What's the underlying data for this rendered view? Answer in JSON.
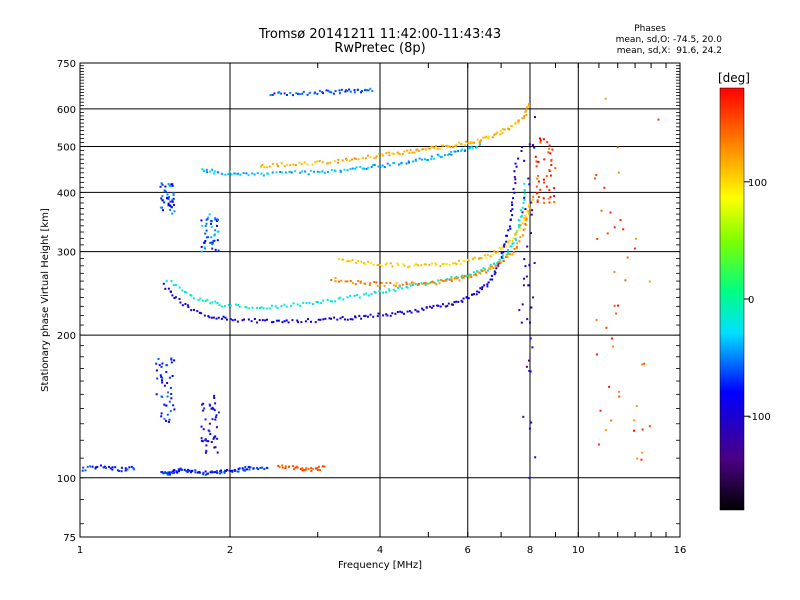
{
  "chart_data": {
    "type": "scatter",
    "title": "Tromsø 20141211 11:42:00-11:43:43",
    "subtitle": "RwPretec (8p)",
    "xlabel": "Frequency [MHz]",
    "ylabel": "Stationary phase Virtual Height [km]",
    "x_scale": "log",
    "y_scale": "log",
    "xlim": [
      1,
      16
    ],
    "ylim": [
      75,
      750
    ],
    "x_ticks": [
      1,
      2,
      4,
      6,
      8,
      10,
      16
    ],
    "y_ticks": [
      75,
      100,
      200,
      300,
      400,
      500,
      600,
      750
    ],
    "x_tick_labels": [
      "1",
      "2",
      "4",
      "6",
      "8",
      "10",
      "16"
    ],
    "y_tick_labels": [
      "75",
      "100",
      "200",
      "300",
      "400",
      "500",
      "600",
      "750"
    ],
    "grid": true,
    "phases_box": {
      "heading": "Phases",
      "line_o": "mean, sd,O: -74.5, 20.0",
      "line_x": "mean, sd,X:  91.6, 24.2"
    },
    "colorbar": {
      "label": "[deg]",
      "range": [
        -180,
        180
      ],
      "ticks": [
        100,
        0,
        -100
      ],
      "tick_labels": [
        "100",
        "0",
        "-100"
      ],
      "colormap": "rainbow"
    },
    "traces": [
      {
        "f": [
          1.48,
          1.6,
          1.8,
          2.0,
          2.3,
          2.6,
          3.0,
          3.4,
          3.8,
          4.3,
          4.8,
          5.3,
          5.8,
          6.3,
          6.7,
          7.0,
          7.25,
          7.4,
          7.55
        ],
        "h": [
          255,
          232,
          220,
          216,
          214,
          214,
          215,
          217,
          219,
          222,
          226,
          230,
          236,
          246,
          262,
          290,
          330,
          390,
          480
        ],
        "phase": -95
      },
      {
        "f": [
          1.5,
          1.7,
          1.9,
          2.2,
          2.5,
          2.9,
          3.3,
          3.8,
          4.3,
          4.8,
          5.4,
          6.0,
          6.6,
          7.1,
          7.5,
          7.7,
          7.85
        ],
        "h": [
          260,
          240,
          232,
          228,
          230,
          233,
          238,
          244,
          250,
          256,
          262,
          268,
          276,
          292,
          320,
          360,
          420
        ],
        "phase": -20
      },
      {
        "f": [
          3.2,
          3.6,
          4.0,
          4.5,
          5.0,
          5.5,
          6.0,
          6.5,
          7.0,
          7.5,
          7.9,
          8.1
        ],
        "h": [
          262,
          258,
          256,
          256,
          257,
          260,
          265,
          272,
          284,
          305,
          350,
          400
        ],
        "phase": 130
      },
      {
        "f": [
          3.3,
          3.7,
          4.2,
          4.8,
          5.4,
          6.0,
          6.6,
          7.2,
          7.7,
          8.0
        ],
        "h": [
          290,
          284,
          281,
          280,
          282,
          286,
          294,
          310,
          340,
          380
        ],
        "phase": 105
      },
      {
        "f": [
          1.75,
          1.9,
          2.1,
          2.4,
          2.8,
          3.2,
          3.6,
          4.0,
          4.5,
          5.0,
          5.5,
          6.0,
          6.4
        ],
        "h": [
          448,
          440,
          438,
          438,
          440,
          442,
          448,
          455,
          463,
          472,
          482,
          494,
          506
        ],
        "phase": -40
      },
      {
        "f": [
          2.3,
          2.6,
          3.0,
          3.4,
          3.8,
          4.2,
          4.6,
          5.0,
          5.4,
          5.8,
          6.3,
          6.8,
          7.3,
          7.8,
          8.0
        ],
        "h": [
          455,
          458,
          462,
          468,
          475,
          482,
          488,
          495,
          500,
          506,
          514,
          528,
          548,
          580,
          620
        ],
        "phase": 115
      },
      {
        "f": [
          2.4,
          2.7,
          3.0,
          3.3,
          3.6,
          3.9
        ],
        "h": [
          645,
          647,
          650,
          652,
          655,
          660
        ],
        "phase": -60
      },
      {
        "f": [
          1.45,
          1.5,
          1.55,
          1.6,
          1.7,
          1.8,
          1.9,
          2.0,
          2.1,
          2.2,
          2.4
        ],
        "h": [
          103,
          102,
          103,
          104,
          103,
          102,
          103,
          103,
          104,
          105,
          104
        ],
        "phase": -75
      },
      {
        "f": [
          1.0,
          1.1,
          1.2,
          1.3
        ],
        "h": [
          104,
          106,
          104,
          105
        ],
        "phase": -70
      },
      {
        "f": [
          2.5,
          2.7,
          2.9,
          3.1
        ],
        "h": [
          106,
          105,
          104,
          105
        ],
        "phase": 150
      }
    ],
    "clusters": [
      {
        "f": [
          1.42,
          1.55
        ],
        "h": [
          130,
          180
        ],
        "phase": -80
      },
      {
        "f": [
          1.75,
          1.9
        ],
        "h": [
          112,
          150
        ],
        "phase": -95
      },
      {
        "f": [
          1.45,
          1.55
        ],
        "h": [
          360,
          420
        ],
        "phase": -70
      },
      {
        "f": [
          1.75,
          1.9
        ],
        "h": [
          300,
          360
        ],
        "phase": -60
      },
      {
        "f": [
          7.6,
          8.2
        ],
        "h": [
          100,
          600
        ],
        "phase": -110
      },
      {
        "f": [
          8.2,
          9.0
        ],
        "h": [
          380,
          520
        ],
        "phase": 160
      },
      {
        "f": [
          10.5,
          14.5
        ],
        "h": [
          100,
          650
        ],
        "phase": 150
      }
    ]
  }
}
